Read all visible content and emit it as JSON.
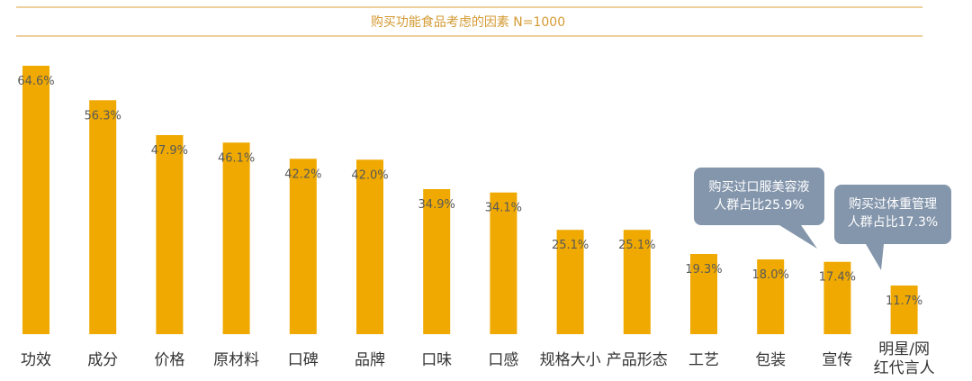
{
  "chart_data": {
    "type": "bar",
    "title": "购买功能食品考虑的因素 N=1000",
    "categories": [
      "功效",
      "成分",
      "价格",
      "原材料",
      "口碑",
      "品牌",
      "口味",
      "口感",
      "规格大小",
      "产品形态",
      "工艺",
      "包装",
      "宣传",
      "明星/网红代言人"
    ],
    "category_lines": [
      [
        "功效"
      ],
      [
        "成分"
      ],
      [
        "价格"
      ],
      [
        "原材料"
      ],
      [
        "口碑"
      ],
      [
        "品牌"
      ],
      [
        "口味"
      ],
      [
        "口感"
      ],
      [
        "规格大小"
      ],
      [
        "产品形态"
      ],
      [
        "工艺"
      ],
      [
        "包装"
      ],
      [
        "宣传"
      ],
      [
        "明星/网",
        "红代言人"
      ]
    ],
    "values": [
      64.6,
      56.3,
      47.9,
      46.1,
      42.2,
      42.0,
      34.9,
      34.1,
      25.1,
      25.1,
      19.3,
      18.0,
      17.4,
      11.7
    ],
    "value_labels": [
      "64.6%",
      "56.3%",
      "47.9%",
      "46.1%",
      "42.2%",
      "42.0%",
      "34.9%",
      "34.1%",
      "25.1%",
      "25.1%",
      "19.3%",
      "18.0%",
      "17.4%",
      "11.7%"
    ],
    "bar_color": "#efa900",
    "grid": false,
    "legend": "none",
    "annotations": [
      {
        "target": "包装",
        "lines": [
          "购买过口服美容液",
          "人群占比25.9%"
        ],
        "color": "#8496ac"
      },
      {
        "target": "明星/网红代言人",
        "lines": [
          "购买过体重管理",
          "人群占比17.3%"
        ],
        "color": "#8496ac"
      }
    ]
  }
}
